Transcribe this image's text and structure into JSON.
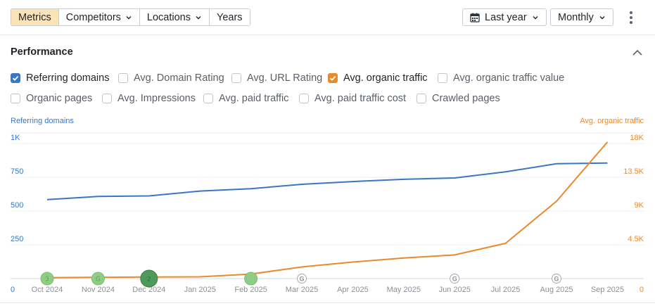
{
  "toolbar": {
    "tabs": [
      {
        "label": "Metrics",
        "active": true,
        "dropdown": false
      },
      {
        "label": "Competitors",
        "active": false,
        "dropdown": true
      },
      {
        "label": "Locations",
        "active": false,
        "dropdown": true
      },
      {
        "label": "Years",
        "active": false,
        "dropdown": false
      }
    ],
    "date_range": "Last year",
    "granularity": "Monthly",
    "date_icon": "calendar-icon",
    "more_icon": "kebab-menu-icon"
  },
  "panel": {
    "title": "Performance",
    "collapse_icon": "chevron-up-icon"
  },
  "metrics": [
    {
      "label": "Referring domains",
      "checked": true,
      "color": "#3b76c4"
    },
    {
      "label": "Avg. Domain Rating",
      "checked": false
    },
    {
      "label": "Avg. URL Rating",
      "checked": false
    },
    {
      "label": "Avg. organic traffic",
      "checked": true,
      "color": "#e88a2d"
    },
    {
      "label": "Avg. organic traffic value",
      "checked": false
    },
    {
      "label": "Organic pages",
      "checked": false
    },
    {
      "label": "Avg. Impressions",
      "checked": false
    },
    {
      "label": "Avg. paid traffic",
      "checked": false
    },
    {
      "label": "Avg. paid traffic cost",
      "checked": false
    },
    {
      "label": "Crawled pages",
      "checked": false
    }
  ],
  "chart_data": {
    "type": "line",
    "left_axis_title": "Referring domains",
    "right_axis_title": "Avg. organic traffic",
    "left_ticks": [
      "0",
      "250",
      "500",
      "750",
      "1K"
    ],
    "right_ticks": [
      "0",
      "4.5K",
      "9K",
      "13.5K",
      "18K"
    ],
    "left_range": [
      0,
      1000
    ],
    "right_range": [
      0,
      18000
    ],
    "categories": [
      "Oct 2024",
      "Nov 2024",
      "Dec 2024",
      "Jan 2025",
      "Feb 2025",
      "Mar 2025",
      "Apr 2025",
      "May 2025",
      "Jun 2025",
      "Jul 2025",
      "Aug 2025",
      "Sep 2025"
    ],
    "grid": true,
    "series": [
      {
        "name": "Referring domains",
        "axis": "left",
        "color": "#3b76c4",
        "values": [
          585,
          608,
          612,
          648,
          665,
          698,
          718,
          735,
          745,
          790,
          850,
          855
        ]
      },
      {
        "name": "Avg. organic traffic",
        "axis": "right",
        "color": "#e88a2d",
        "values": [
          120,
          170,
          210,
          230,
          600,
          1550,
          2200,
          2750,
          3150,
          4700,
          10300,
          18200
        ]
      }
    ],
    "annotations": [
      {
        "month": "Oct 2024",
        "label": "3",
        "kind": "green"
      },
      {
        "month": "Nov 2024",
        "label": "G",
        "kind": "green"
      },
      {
        "month": "Dec 2024",
        "label": "2",
        "kind": "green-dark"
      },
      {
        "month": "Feb 2025",
        "label": "",
        "kind": "green"
      },
      {
        "month": "Mar 2025",
        "label": "G",
        "kind": "google"
      },
      {
        "month": "Jun 2025",
        "label": "G",
        "kind": "google"
      },
      {
        "month": "Aug 2025",
        "label": "G",
        "kind": "google"
      }
    ]
  }
}
